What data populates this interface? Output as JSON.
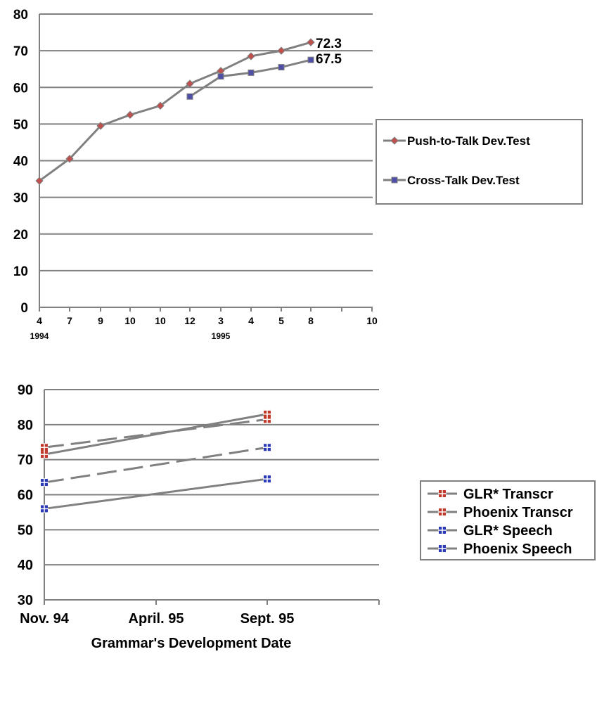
{
  "chart_data": [
    {
      "type": "line",
      "ylim": [
        0,
        80
      ],
      "yticks": [
        0,
        10,
        20,
        30,
        40,
        50,
        60,
        70,
        80
      ],
      "grid": true,
      "categories": [
        "4",
        "7",
        "9",
        "10",
        "10",
        "12",
        "3",
        "4",
        "5",
        "8",
        "",
        "10"
      ],
      "year_labels": [
        {
          "category_index": 0,
          "text": "1994"
        },
        {
          "category_index": 6,
          "text": "1995"
        }
      ],
      "series": [
        {
          "name": "Push-to-Talk Dev.Test",
          "color": "#808080",
          "marker": "diamond",
          "marker_color": "#c0504d",
          "values": [
            34.5,
            40.5,
            49.5,
            52.5,
            55,
            61,
            64.5,
            68.5,
            70,
            72.3,
            null,
            null
          ]
        },
        {
          "name": "Cross-Talk Dev.Test",
          "color": "#808080",
          "marker": "square",
          "marker_color": "#4f4fa8",
          "values": [
            null,
            null,
            null,
            null,
            null,
            57.5,
            63,
            64,
            65.5,
            67.5,
            null,
            null
          ]
        }
      ],
      "annotations": [
        "72.3",
        "67.5"
      ],
      "legend": "right",
      "legend_items": [
        "Push-to-Talk Dev.Test",
        "Cross-Talk Dev.Test"
      ]
    },
    {
      "type": "line",
      "ylim": [
        30,
        90
      ],
      "yticks": [
        30,
        40,
        50,
        60,
        70,
        80,
        90
      ],
      "grid": true,
      "categories": [
        "Nov. 94",
        "April. 95",
        "Sept. 95"
      ],
      "xlabel": "Grammar's Development Date",
      "series": [
        {
          "name": "GLR* Transcr",
          "color": "#808080",
          "dash": "solid",
          "marker_color": "#c0392b",
          "values": [
            71.5,
            null,
            83
          ]
        },
        {
          "name": "Phoenix Transcr",
          "color": "#808080",
          "dash": "dashed",
          "marker_color": "#c0392b",
          "values": [
            73.5,
            null,
            81.5
          ]
        },
        {
          "name": "GLR* Speech",
          "color": "#808080",
          "dash": "dashed",
          "marker_color": "#2a3ab5",
          "values": [
            63.5,
            null,
            73.5
          ]
        },
        {
          "name": "Phoenix Speech",
          "color": "#808080",
          "dash": "solid",
          "marker_color": "#2a3ab5",
          "values": [
            56,
            null,
            64.5
          ]
        }
      ],
      "legend": "right",
      "legend_items": [
        "GLR* Transcr",
        "Phoenix Transcr",
        "GLR* Speech",
        "Phoenix Speech"
      ]
    }
  ]
}
